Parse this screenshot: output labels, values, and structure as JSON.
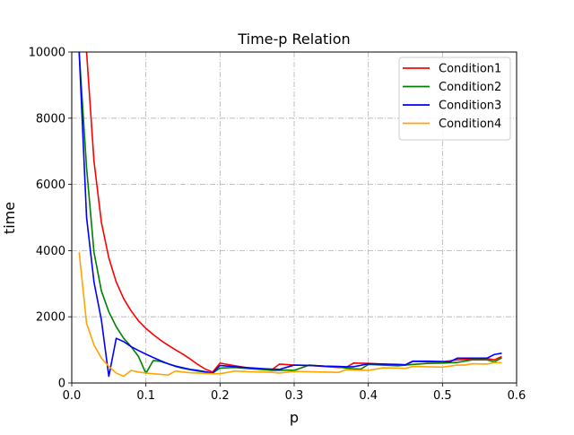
{
  "chart_data": {
    "type": "line",
    "title": "Time-p Relation",
    "xlabel": "p",
    "ylabel": "time",
    "xlim": [
      0.0,
      0.6
    ],
    "ylim": [
      0,
      10000
    ],
    "xticks": [
      "0.0",
      "0.1",
      "0.2",
      "0.3",
      "0.4",
      "0.5",
      "0.6"
    ],
    "yticks": [
      "0",
      "2000",
      "4000",
      "6000",
      "8000",
      "10000"
    ],
    "grid": true,
    "legend_position": "top-right",
    "series": [
      {
        "name": "Condition1",
        "color": "#ff0000",
        "x": [
          0.01,
          0.02,
          0.03,
          0.04,
          0.05,
          0.06,
          0.07,
          0.08,
          0.09,
          0.1,
          0.11,
          0.12,
          0.13,
          0.14,
          0.15,
          0.16,
          0.17,
          0.18,
          0.19,
          0.2,
          0.22,
          0.24,
          0.26,
          0.27,
          0.28,
          0.3,
          0.32,
          0.34,
          0.36,
          0.37,
          0.38,
          0.4,
          0.42,
          0.44,
          0.45,
          0.46,
          0.48,
          0.5,
          0.52,
          0.54,
          0.56,
          0.57,
          0.58
        ],
        "y": [
          12000,
          10000,
          6700,
          4850,
          3780,
          3050,
          2550,
          2180,
          1880,
          1650,
          1460,
          1290,
          1140,
          1000,
          870,
          720,
          560,
          420,
          330,
          600,
          520,
          450,
          410,
          400,
          570,
          540,
          530,
          500,
          470,
          470,
          600,
          590,
          570,
          540,
          540,
          650,
          640,
          640,
          700,
          720,
          740,
          700,
          800
        ]
      },
      {
        "name": "Condition2",
        "color": "#008000",
        "x": [
          0.01,
          0.02,
          0.03,
          0.04,
          0.05,
          0.06,
          0.07,
          0.08,
          0.09,
          0.1,
          0.11,
          0.12,
          0.13,
          0.14,
          0.15,
          0.16,
          0.17,
          0.18,
          0.19,
          0.2,
          0.22,
          0.24,
          0.26,
          0.27,
          0.28,
          0.29,
          0.3,
          0.32,
          0.34,
          0.36,
          0.37,
          0.38,
          0.39,
          0.4,
          0.42,
          0.44,
          0.46,
          0.48,
          0.5,
          0.52,
          0.54,
          0.56,
          0.57,
          0.58
        ],
        "y": [
          10000,
          6500,
          3950,
          2780,
          2150,
          1700,
          1350,
          1100,
          800,
          290,
          680,
          650,
          580,
          500,
          440,
          400,
          360,
          330,
          300,
          450,
          470,
          430,
          400,
          380,
          380,
          390,
          380,
          540,
          510,
          480,
          450,
          430,
          420,
          560,
          540,
          520,
          560,
          590,
          600,
          620,
          700,
          700,
          640,
          760
        ]
      },
      {
        "name": "Condition3",
        "color": "#0000ff",
        "x": [
          0.01,
          0.02,
          0.03,
          0.04,
          0.05,
          0.06,
          0.07,
          0.08,
          0.09,
          0.1,
          0.11,
          0.12,
          0.13,
          0.14,
          0.15,
          0.16,
          0.17,
          0.18,
          0.19,
          0.2,
          0.22,
          0.24,
          0.26,
          0.27,
          0.28,
          0.3,
          0.32,
          0.34,
          0.36,
          0.37,
          0.38,
          0.4,
          0.42,
          0.44,
          0.45,
          0.46,
          0.48,
          0.5,
          0.51,
          0.52,
          0.54,
          0.56,
          0.57,
          0.58
        ],
        "y": [
          10000,
          5000,
          3050,
          1900,
          200,
          1350,
          1250,
          1100,
          980,
          870,
          770,
          670,
          580,
          510,
          460,
          410,
          380,
          340,
          300,
          530,
          490,
          460,
          430,
          420,
          410,
          540,
          530,
          510,
          500,
          490,
          490,
          580,
          570,
          560,
          550,
          660,
          660,
          650,
          640,
          750,
          750,
          750,
          860,
          900
        ]
      },
      {
        "name": "Condition4",
        "color": "#ffa500",
        "x": [
          0.01,
          0.02,
          0.03,
          0.04,
          0.05,
          0.06,
          0.07,
          0.08,
          0.09,
          0.1,
          0.11,
          0.12,
          0.13,
          0.14,
          0.15,
          0.16,
          0.17,
          0.18,
          0.19,
          0.2,
          0.22,
          0.24,
          0.26,
          0.27,
          0.28,
          0.3,
          0.32,
          0.34,
          0.36,
          0.37,
          0.38,
          0.4,
          0.42,
          0.44,
          0.45,
          0.46,
          0.48,
          0.5,
          0.52,
          0.53,
          0.54,
          0.56,
          0.57,
          0.58
        ],
        "y": [
          3950,
          1800,
          1150,
          750,
          500,
          300,
          200,
          380,
          330,
          300,
          280,
          260,
          240,
          360,
          330,
          310,
          300,
          290,
          280,
          280,
          360,
          340,
          330,
          320,
          300,
          350,
          340,
          330,
          320,
          400,
          390,
          380,
          460,
          450,
          440,
          500,
          490,
          480,
          540,
          540,
          580,
          570,
          620,
          610
        ]
      }
    ]
  }
}
